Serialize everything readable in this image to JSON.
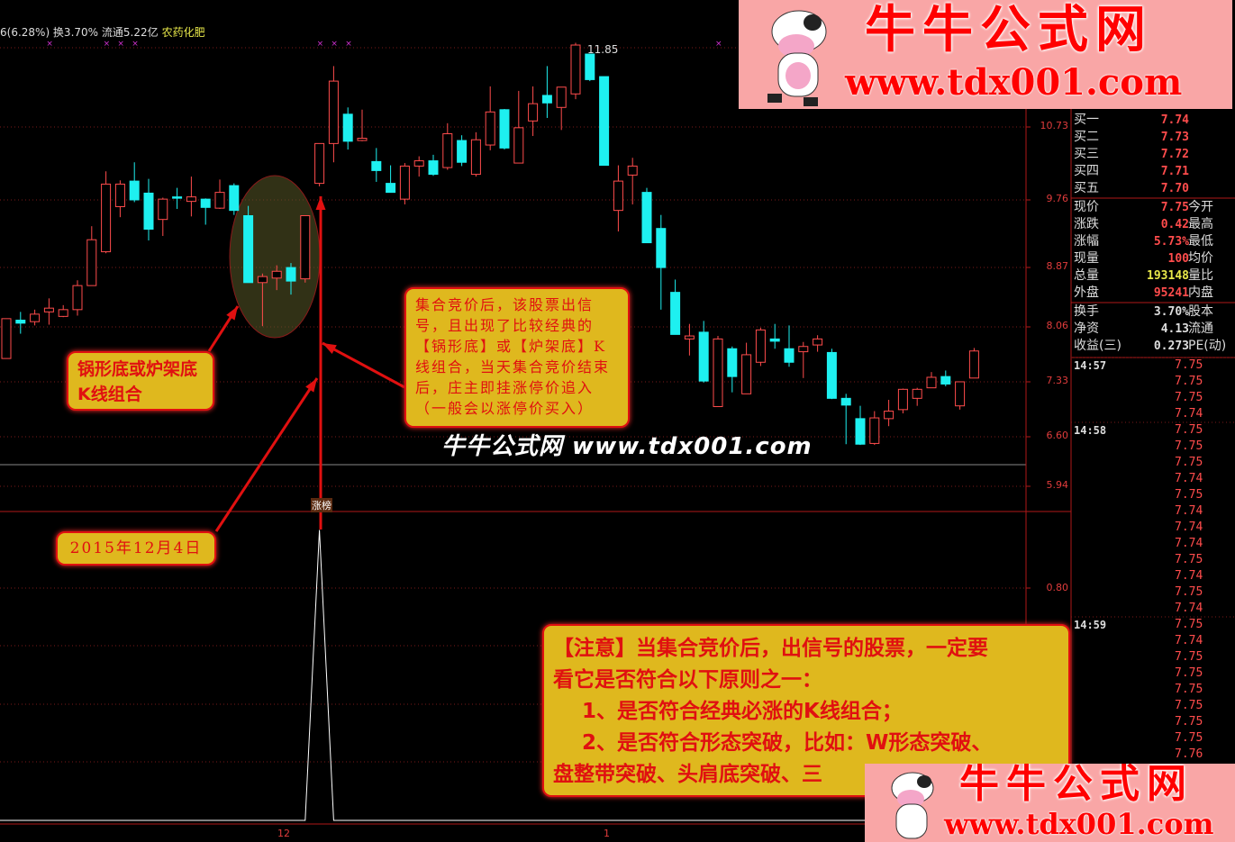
{
  "header": {
    "stats": "6(6.28%) 换3.70% 流通5.22亿",
    "sector": "农药化肥"
  },
  "colors": {
    "up": "#ff4c4c",
    "down": "#1ef0f0",
    "axis": "#e03c3c",
    "callout_bg": "#dfb81e",
    "callout_text": "#e01010",
    "logo_bg": "#f9a6a6"
  },
  "chart_data": {
    "type": "candlestick",
    "price_axis_ticks": [
      "10.73",
      "9.76",
      "8.87",
      "8.06",
      "7.33",
      "6.60",
      "5.94"
    ],
    "x_ticks": [
      "12",
      "1"
    ],
    "high_label": "11.85",
    "candles": [
      [
        7.65,
        8.18,
        7.65,
        8.18
      ],
      [
        8.16,
        8.27,
        7.98,
        8.12
      ],
      [
        8.14,
        8.3,
        8.09,
        8.24
      ],
      [
        8.27,
        8.45,
        8.1,
        8.32
      ],
      [
        8.21,
        8.36,
        8.2,
        8.3
      ],
      [
        8.3,
        8.69,
        8.22,
        8.62
      ],
      [
        8.62,
        9.41,
        8.62,
        9.23
      ],
      [
        9.07,
        10.14,
        9.05,
        9.97
      ],
      [
        9.67,
        10.02,
        9.53,
        9.97
      ],
      [
        10.01,
        10.26,
        9.73,
        9.76
      ],
      [
        9.85,
        10.04,
        9.22,
        9.37
      ],
      [
        9.5,
        9.79,
        9.28,
        9.77
      ],
      [
        9.8,
        9.92,
        9.64,
        9.79
      ],
      [
        9.74,
        10.07,
        9.54,
        9.8
      ],
      [
        9.77,
        9.78,
        9.43,
        9.66
      ],
      [
        9.65,
        10.03,
        9.64,
        9.86
      ],
      [
        9.95,
        9.98,
        9.56,
        9.62
      ],
      [
        9.55,
        9.68,
        8.66,
        8.66
      ],
      [
        8.66,
        8.78,
        8.08,
        8.74
      ],
      [
        8.72,
        8.89,
        8.56,
        8.81
      ],
      [
        8.86,
        8.92,
        8.5,
        8.68
      ],
      [
        8.71,
        9.55,
        8.66,
        9.55
      ],
      [
        9.98,
        10.51,
        9.94,
        10.51
      ],
      [
        10.51,
        11.54,
        10.26,
        11.34
      ],
      [
        10.9,
        10.99,
        10.43,
        10.54
      ],
      [
        10.55,
        10.96,
        10.54,
        10.58
      ],
      [
        10.27,
        10.45,
        10.0,
        10.15
      ],
      [
        9.98,
        10.22,
        9.86,
        9.86
      ],
      [
        9.77,
        10.25,
        9.7,
        10.21
      ],
      [
        10.21,
        10.34,
        10.07,
        10.28
      ],
      [
        10.28,
        10.36,
        10.08,
        10.1
      ],
      [
        10.19,
        10.78,
        10.16,
        10.64
      ],
      [
        10.55,
        10.62,
        10.21,
        10.26
      ],
      [
        10.1,
        10.66,
        10.07,
        10.56
      ],
      [
        10.49,
        11.27,
        10.42,
        10.93
      ],
      [
        10.96,
        10.97,
        10.43,
        10.45
      ],
      [
        10.25,
        11.21,
        10.25,
        10.72
      ],
      [
        10.81,
        11.27,
        10.61,
        11.04
      ],
      [
        11.15,
        11.54,
        10.85,
        11.05
      ],
      [
        10.99,
        11.26,
        10.69,
        11.26
      ],
      [
        11.17,
        11.85,
        11.1,
        11.82
      ],
      [
        11.7,
        11.7,
        11.34,
        11.36
      ],
      [
        11.4,
        11.4,
        10.22,
        10.22
      ],
      [
        9.62,
        10.22,
        9.34,
        10.01
      ],
      [
        10.09,
        10.32,
        9.7,
        10.21
      ],
      [
        9.86,
        9.92,
        9.19,
        9.19
      ],
      [
        9.38,
        9.56,
        8.3,
        8.86
      ],
      [
        8.53,
        8.7,
        7.97,
        7.97
      ],
      [
        7.91,
        8.11,
        7.69,
        7.95
      ],
      [
        8.0,
        8.15,
        7.33,
        7.35
      ],
      [
        7.01,
        7.95,
        7.01,
        7.91
      ],
      [
        7.78,
        7.81,
        7.2,
        7.41
      ],
      [
        7.18,
        7.86,
        7.18,
        7.7
      ],
      [
        7.6,
        8.06,
        7.55,
        8.03
      ],
      [
        7.91,
        8.11,
        7.78,
        7.88
      ],
      [
        7.78,
        8.09,
        7.54,
        7.6
      ],
      [
        7.74,
        7.87,
        7.39,
        7.81
      ],
      [
        7.83,
        7.96,
        7.74,
        7.91
      ],
      [
        7.73,
        7.78,
        7.11,
        7.12
      ],
      [
        7.12,
        7.18,
        6.51,
        7.03
      ],
      [
        6.85,
        7.02,
        6.5,
        6.51
      ],
      [
        6.52,
        6.95,
        6.5,
        6.86
      ],
      [
        6.85,
        7.1,
        6.75,
        6.95
      ],
      [
        6.97,
        7.25,
        6.92,
        7.24
      ],
      [
        7.12,
        7.26,
        7.02,
        7.24
      ],
      [
        7.26,
        7.47,
        7.26,
        7.4
      ],
      [
        7.41,
        7.49,
        7.28,
        7.31
      ],
      [
        7.02,
        7.34,
        6.97,
        7.34
      ],
      [
        7.39,
        7.79,
        7.39,
        7.75
      ]
    ],
    "signal_marker_candles": [
      3,
      7,
      8,
      9,
      22,
      23,
      24,
      50
    ],
    "indicator": {
      "axis_ticks": [
        "0.80"
      ],
      "values_nonzero": {
        "22": 1.0
      },
      "signal_label": "涨榜"
    }
  },
  "quote_panel": {
    "bids": [
      {
        "label": "买一",
        "price": "7.74"
      },
      {
        "label": "买二",
        "price": "7.73"
      },
      {
        "label": "买三",
        "price": "7.72"
      },
      {
        "label": "买四",
        "price": "7.71"
      },
      {
        "label": "买五",
        "price": "7.70"
      }
    ],
    "stats": [
      {
        "label": "现价",
        "value": "7.75",
        "label2": "今开",
        "color": "red"
      },
      {
        "label": "涨跌",
        "value": "0.42",
        "label2": "最高",
        "color": "red"
      },
      {
        "label": "涨幅",
        "value": "5.73%",
        "label2": "最低",
        "color": "red"
      },
      {
        "label": "现量",
        "value": "100",
        "label2": "均价",
        "color": "red"
      },
      {
        "label": "总量",
        "value": "193148",
        "label2": "量比",
        "color": "yellow"
      },
      {
        "label": "外盘",
        "value": "95241",
        "label2": "内盘",
        "color": "red"
      }
    ],
    "fundamentals": [
      {
        "label": "换手",
        "value": "3.70%",
        "label2": "股本"
      },
      {
        "label": "净资",
        "value": "4.13",
        "label2": "流通"
      },
      {
        "label": "收益(三)",
        "value": "0.273",
        "label2": "PE(动)"
      }
    ]
  },
  "ticks": [
    {
      "time": "14:57",
      "prices": [
        "7.75",
        "7.75",
        "7.75",
        "7.74"
      ]
    },
    {
      "time": "14:58",
      "prices": [
        "7.75",
        "7.75",
        "7.75",
        "7.74",
        "7.75",
        "7.74",
        "7.74",
        "7.74",
        "7.75",
        "7.74",
        "7.75",
        "7.74"
      ]
    },
    {
      "time": "14:59",
      "prices": [
        "7.75",
        "7.74",
        "7.75",
        "7.75",
        "7.75",
        "7.75",
        "7.75",
        "7.75",
        "7.76"
      ]
    }
  ],
  "annotations": {
    "pattern_box": {
      "line1": "锅形底或炉架底",
      "line2": "K线组合"
    },
    "date_box": "2015年12月4日",
    "explain_box": "集合竞价后，该股票出信号，且出现了比较经典的【锅形底】或【炉架底】K线组合，当天集合竞价结束后，庄主即挂涨停价追入（一般会以涨停价买入）",
    "note_box": {
      "line1": "【注意】当集合竞价后，出信号的股票，一定要",
      "line2": "看它是否符合以下原则之一：",
      "line3": "1、是否符合经典必涨的K线组合；",
      "line4": "2、是否符合形态突破，比如：W形态突破、",
      "line5": "盘整带突破、头肩底突破、三"
    },
    "watermark": "牛牛公式网 www.tdx001.com"
  },
  "logo": {
    "title": "牛牛公式网",
    "url": "www.tdx001.com"
  }
}
